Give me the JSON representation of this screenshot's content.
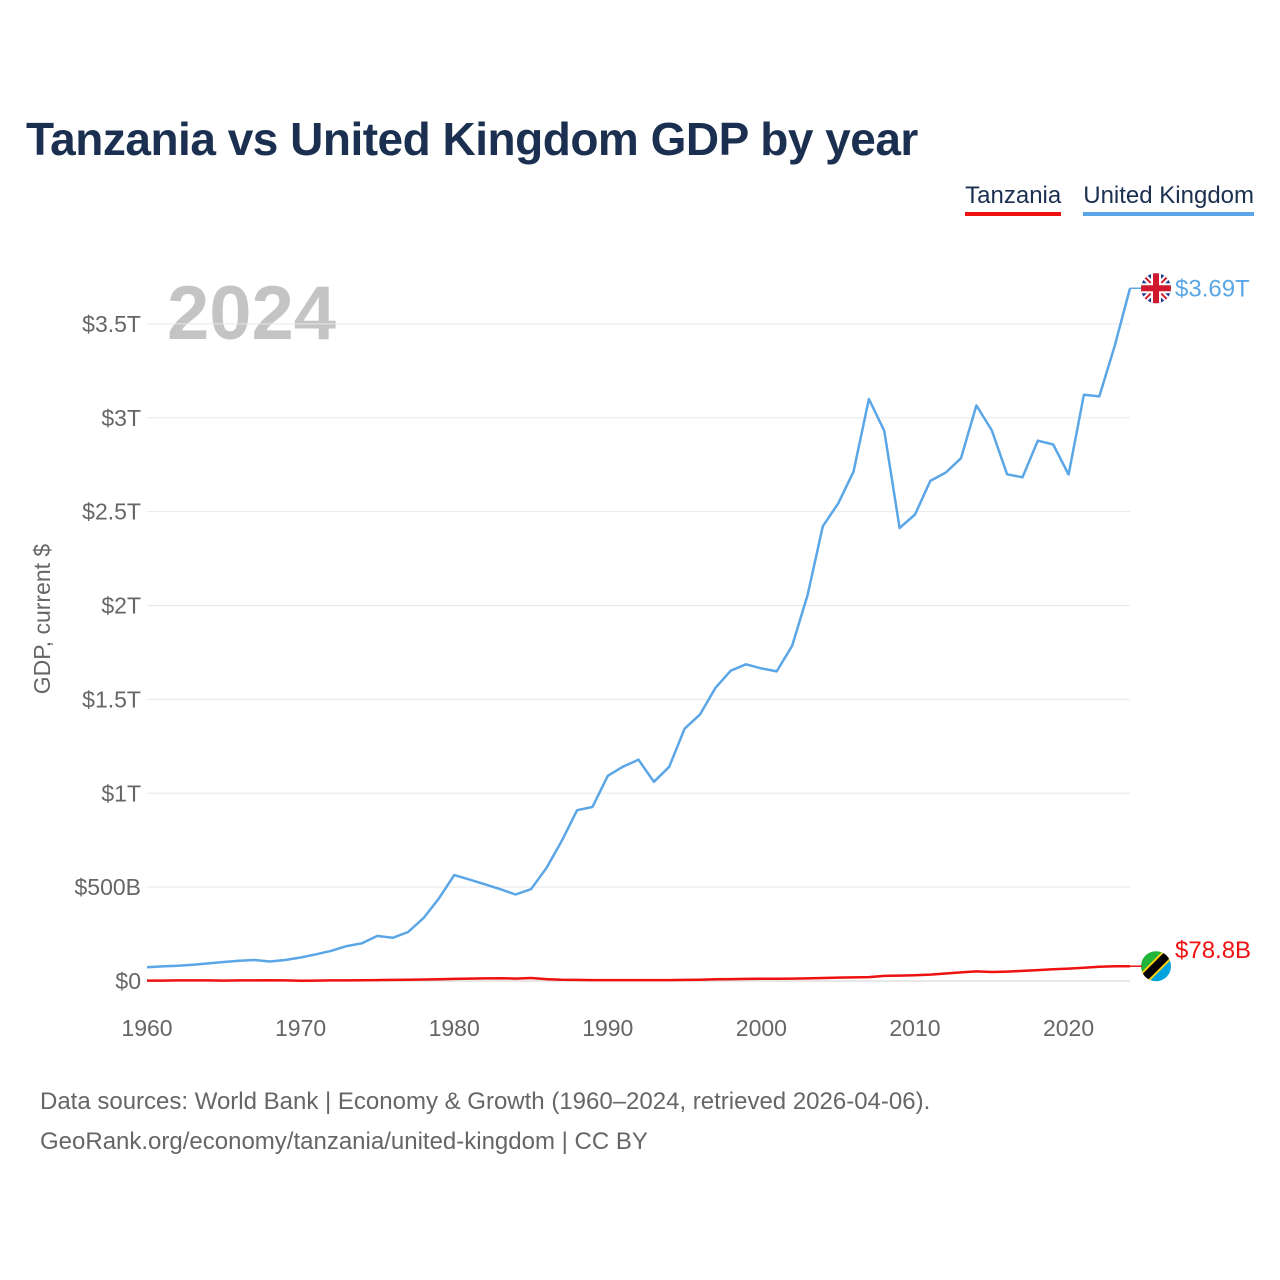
{
  "chart_data": {
    "type": "line",
    "title": "Tanzania vs United Kingdom GDP by year",
    "year_label": "2024",
    "ylabel": "GDP, current $",
    "xlabel": "",
    "xlim": [
      1960,
      2024
    ],
    "ylim": [
      0,
      3.75
    ],
    "x_ticks": [
      1960,
      1970,
      1980,
      1990,
      2000,
      2010,
      2020
    ],
    "y_ticks": [
      {
        "value": 0,
        "label": "$0"
      },
      {
        "value": 0.5,
        "label": "$500B"
      },
      {
        "value": 1,
        "label": "$1T"
      },
      {
        "value": 1.5,
        "label": "$1.5T"
      },
      {
        "value": 2,
        "label": "$2T"
      },
      {
        "value": 2.5,
        "label": "$2.5T"
      },
      {
        "value": 3,
        "label": "$3T"
      },
      {
        "value": 3.5,
        "label": "$3.5T"
      }
    ],
    "x": [
      1960,
      1961,
      1962,
      1963,
      1964,
      1965,
      1966,
      1967,
      1968,
      1969,
      1970,
      1971,
      1972,
      1973,
      1974,
      1975,
      1976,
      1977,
      1978,
      1979,
      1980,
      1981,
      1982,
      1983,
      1984,
      1985,
      1986,
      1987,
      1988,
      1989,
      1990,
      1991,
      1992,
      1993,
      1994,
      1995,
      1996,
      1997,
      1998,
      1999,
      2000,
      2001,
      2002,
      2003,
      2004,
      2005,
      2006,
      2007,
      2008,
      2009,
      2010,
      2011,
      2012,
      2013,
      2014,
      2015,
      2016,
      2017,
      2018,
      2019,
      2020,
      2021,
      2022,
      2023,
      2024
    ],
    "series": [
      {
        "name": "Tanzania",
        "color": "#ee1111",
        "end_label": "$78.8B",
        "flag": "tanzania-flag",
        "values": [
          0.002,
          0.002,
          0.003,
          0.003,
          0.003,
          0.002,
          0.003,
          0.003,
          0.004,
          0.003,
          0.001,
          0.002,
          0.003,
          0.003,
          0.004,
          0.005,
          0.006,
          0.007,
          0.008,
          0.009,
          0.011,
          0.013,
          0.014,
          0.015,
          0.013,
          0.016,
          0.01,
          0.007,
          0.006,
          0.005,
          0.005,
          0.005,
          0.005,
          0.005,
          0.005,
          0.006,
          0.007,
          0.009,
          0.01,
          0.011,
          0.012,
          0.012,
          0.013,
          0.014,
          0.016,
          0.018,
          0.019,
          0.021,
          0.027,
          0.029,
          0.031,
          0.034,
          0.04,
          0.046,
          0.051,
          0.048,
          0.05,
          0.054,
          0.058,
          0.063,
          0.066,
          0.071,
          0.076,
          0.079,
          0.0788
        ]
      },
      {
        "name": "United Kingdom",
        "color": "#5ba6e6",
        "end_label": "$3.69T",
        "flag": "uk-flag",
        "values": [
          0.073,
          0.078,
          0.081,
          0.087,
          0.094,
          0.101,
          0.108,
          0.112,
          0.104,
          0.112,
          0.125,
          0.142,
          0.161,
          0.186,
          0.201,
          0.24,
          0.23,
          0.261,
          0.335,
          0.439,
          0.564,
          0.54,
          0.515,
          0.489,
          0.461,
          0.489,
          0.601,
          0.746,
          0.91,
          0.927,
          1.093,
          1.142,
          1.179,
          1.061,
          1.141,
          1.344,
          1.419,
          1.56,
          1.653,
          1.687,
          1.665,
          1.649,
          1.785,
          2.054,
          2.422,
          2.544,
          2.713,
          3.1,
          2.93,
          2.413,
          2.485,
          2.664,
          2.708,
          2.785,
          3.066,
          2.933,
          2.699,
          2.683,
          2.878,
          2.858,
          2.698,
          3.123,
          3.114,
          3.381,
          3.69
        ]
      }
    ],
    "legend": {
      "position": "top-right",
      "items": [
        "Tanzania",
        "United Kingdom"
      ]
    }
  },
  "footer": {
    "line1": "Data sources: World Bank | Economy & Growth (1960–2024, retrieved 2026-04-06).",
    "line2_link": "GeoRank.org/economy/tanzania/united-kingdom",
    "line2_rest": " | CC BY"
  }
}
